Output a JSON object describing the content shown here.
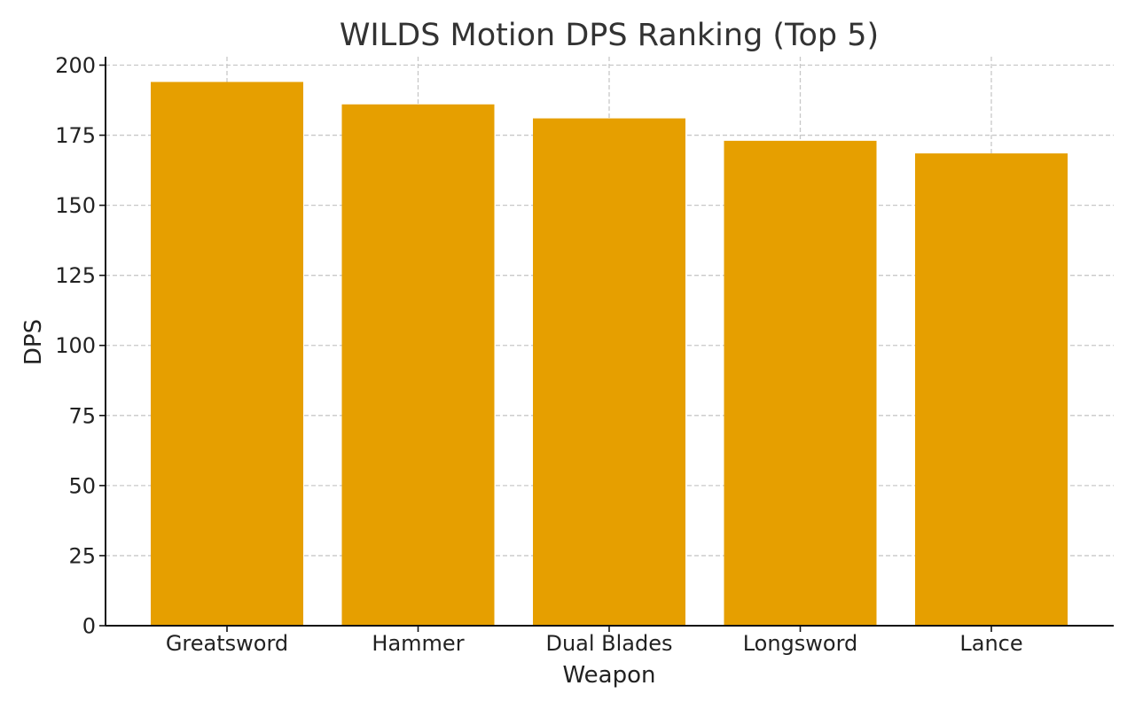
{
  "chart_data": {
    "type": "bar",
    "title": "WILDS Motion DPS Ranking (Top 5)",
    "xlabel": "Weapon",
    "ylabel": "DPS",
    "categories": [
      "Greatsword",
      "Hammer",
      "Dual Blades",
      "Longsword",
      "Lance"
    ],
    "values": [
      194,
      186,
      181,
      173,
      168.5
    ],
    "ylim": [
      0,
      203
    ],
    "yticks": [
      0,
      25,
      50,
      75,
      100,
      125,
      150,
      175,
      200
    ],
    "grid": true,
    "bar_color": "#E69F00"
  }
}
